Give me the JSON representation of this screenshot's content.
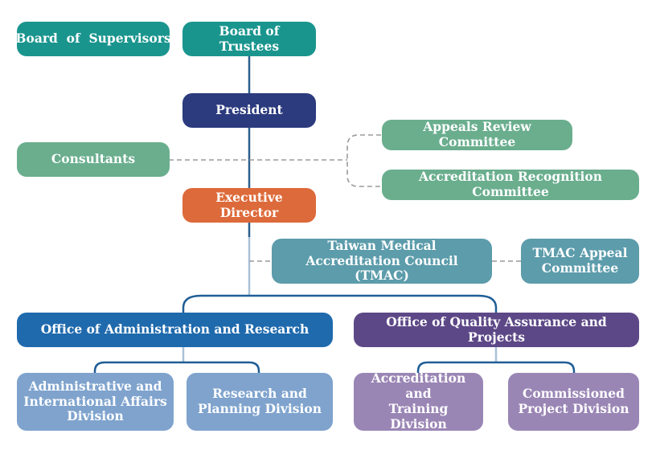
{
  "colors": {
    "teal": "#1a958e",
    "navy": "#2c3b7e",
    "sage": "#6aae8e",
    "orange": "#dd6a3a",
    "steel": "#5c9cab",
    "blue": "#1f6aad",
    "purple": "#5d4887",
    "light_blue": "#7fa3cd",
    "lavender": "#9a86b5"
  },
  "nodes": {
    "board_of_supervisors": "Board  of  Supervisors",
    "board_of_trustees": "Board of Trustees",
    "president": "President",
    "consultants": "Consultants",
    "appeals_review_committee": "Appeals Review Committee",
    "accreditation_recognition_committee": "Accreditation Recognition Committee",
    "executive_director": "Executive Director",
    "tmac_line1": "Taiwan Medical",
    "tmac_line2": "Accreditation Council (TMAC)",
    "tmac_appeal_line1": "TMAC Appeal",
    "tmac_appeal_line2": "Committee",
    "office_admin_research": "Office of Administration and Research",
    "office_quality": "Office of Quality Assurance and Projects",
    "admin_intl_line1": "Administrative and",
    "admin_intl_line2": "International Affairs",
    "admin_intl_line3": "Division",
    "research_line1": "Research and",
    "research_line2": "Planning Division",
    "accreditation_training_line1": "Accreditation and",
    "accreditation_training_line2": "Training Division",
    "commissioned_line1": "Commissioned",
    "commissioned_line2": "Project Division"
  }
}
